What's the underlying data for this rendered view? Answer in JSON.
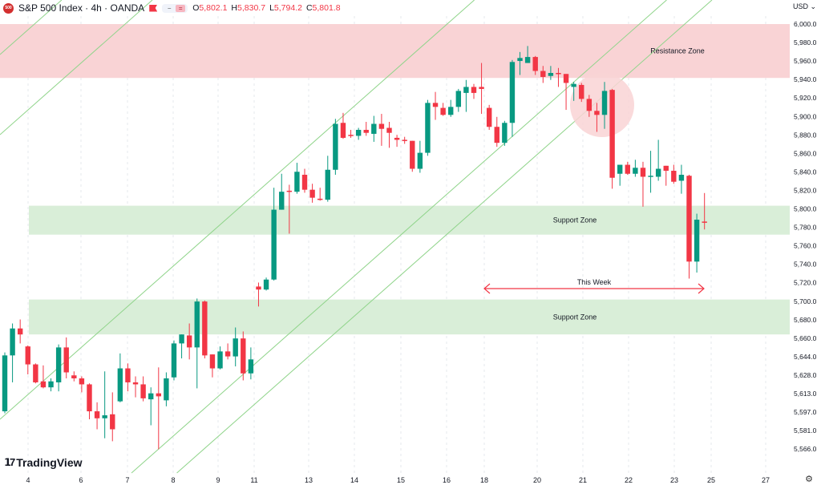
{
  "header": {
    "symbol_badge": "500",
    "title": "S&P 500 Index · 4h · OANDA",
    "ohlc": {
      "o_label": "O",
      "o": "5,802.1",
      "h_label": "H",
      "h": "5,830.7",
      "l_label": "L",
      "l": "5,794.2",
      "c_label": "C",
      "c": "5,801.8"
    },
    "currency": "USD ⌄"
  },
  "branding": {
    "logo_text": "TradingView"
  },
  "colors": {
    "up": "#089981",
    "down": "#f23645",
    "resistance": "#f9d3d5",
    "support": "#d9eed8",
    "channel": "#8fd48a",
    "arrow": "#f23645",
    "grid": "#e6e8ee"
  },
  "chart_data": {
    "type": "candlestick",
    "title": "S&P 500 Index · 4h · OANDA",
    "ylabel": "USD",
    "ylim": [
      5566,
      6000
    ],
    "y_ticks": [
      "6,000.0",
      "5,980.0",
      "5,960.0",
      "5,940.0",
      "5,920.0",
      "5,900.0",
      "5,880.0",
      "5,860.0",
      "5,840.0",
      "5,820.0",
      "5,800.0",
      "5,780.0",
      "5,760.0",
      "5,740.0",
      "5,720.0",
      "5,700.0",
      "5,680.0",
      "5,660.0",
      "5,644.0",
      "5,628.0",
      "5,613.0",
      "5,597.0",
      "5,581.0",
      "5,566.0"
    ],
    "x_ticks": [
      "4",
      "6",
      "7",
      "8",
      "9",
      "11",
      "13",
      "14",
      "15",
      "16",
      "18",
      "20",
      "21",
      "22",
      "23",
      "25",
      "27"
    ],
    "grid": true,
    "candles_ohlc": [
      [
        5612,
        5671,
        5610,
        5668
      ],
      [
        5668,
        5700,
        5641,
        5695
      ],
      [
        5695,
        5704,
        5680,
        5689
      ],
      [
        5677,
        5678,
        5649,
        5659
      ],
      [
        5659,
        5660,
        5640,
        5641
      ],
      [
        5642,
        5658,
        5635,
        5636
      ],
      [
        5636,
        5645,
        5632,
        5642
      ],
      [
        5641,
        5679,
        5632,
        5676
      ],
      [
        5676,
        5686,
        5645,
        5651
      ],
      [
        5648,
        5652,
        5642,
        5645
      ],
      [
        5645,
        5647,
        5631,
        5639
      ],
      [
        5639,
        5640,
        5604,
        5612
      ],
      [
        5612,
        5621,
        5594,
        5605
      ],
      [
        5605,
        5652,
        5585,
        5608
      ],
      [
        5609,
        5631,
        5582,
        5594
      ],
      [
        5622,
        5670,
        5621,
        5655
      ],
      [
        5655,
        5660,
        5632,
        5641
      ],
      [
        5641,
        5647,
        5626,
        5639
      ],
      [
        5639,
        5647,
        5622,
        5625
      ],
      [
        5624,
        5636,
        5598,
        5630
      ],
      [
        5630,
        5656,
        5574,
        5627
      ],
      [
        5623,
        5651,
        5617,
        5645
      ],
      [
        5646,
        5683,
        5643,
        5680
      ],
      [
        5680,
        5689,
        5665,
        5689
      ],
      [
        5688,
        5700,
        5664,
        5676
      ],
      [
        5676,
        5725,
        5635,
        5722
      ],
      [
        5722,
        5723,
        5665,
        5668
      ],
      [
        5669,
        5669,
        5646,
        5655
      ],
      [
        5655,
        5677,
        5654,
        5672
      ],
      [
        5672,
        5680,
        5664,
        5667
      ],
      [
        5667,
        5696,
        5657,
        5685
      ],
      [
        5685,
        5692,
        5643,
        5650
      ],
      [
        5650,
        5676,
        5644,
        5664
      ],
      [
        5737,
        5741,
        5717,
        5734
      ],
      [
        5734,
        5746,
        5733,
        5744
      ],
      [
        5744,
        5836,
        5743,
        5814
      ],
      [
        5814,
        5850,
        5814,
        5832
      ],
      [
        5833,
        5839,
        5790,
        5832
      ],
      [
        5832,
        5861,
        5830,
        5852
      ],
      [
        5849,
        5855,
        5831,
        5834
      ],
      [
        5834,
        5840,
        5821,
        5826
      ],
      [
        5825,
        5836,
        5823,
        5824
      ],
      [
        5824,
        5868,
        5822,
        5854
      ],
      [
        5854,
        5905,
        5849,
        5900
      ],
      [
        5901,
        5911,
        5885,
        5886
      ],
      [
        5889,
        5894,
        5886,
        5888
      ],
      [
        5888,
        5896,
        5884,
        5894
      ],
      [
        5894,
        5902,
        5888,
        5891
      ],
      [
        5890,
        5908,
        5882,
        5900
      ],
      [
        5900,
        5910,
        5878,
        5895
      ],
      [
        5896,
        5902,
        5876,
        5891
      ],
      [
        5886,
        5889,
        5877,
        5884
      ],
      [
        5884,
        5887,
        5880,
        5883
      ],
      [
        5883,
        5883,
        5852,
        5855
      ],
      [
        5855,
        5883,
        5851,
        5871
      ],
      [
        5871,
        5924,
        5868,
        5921
      ],
      [
        5921,
        5932,
        5904,
        5917
      ],
      [
        5916,
        5921,
        5908,
        5909
      ],
      [
        5909,
        5924,
        5907,
        5917
      ],
      [
        5917,
        5935,
        5912,
        5933
      ],
      [
        5931,
        5944,
        5912,
        5937
      ],
      [
        5937,
        5940,
        5925,
        5931
      ],
      [
        5937,
        5961,
        5910,
        5935
      ],
      [
        5916,
        5919,
        5894,
        5897
      ],
      [
        5897,
        5907,
        5877,
        5881
      ],
      [
        5881,
        5903,
        5878,
        5901
      ],
      [
        5901,
        5964,
        5887,
        5962
      ],
      [
        5963,
        5972,
        5949,
        5966
      ],
      [
        5961,
        5978,
        5961,
        5967
      ],
      [
        5967,
        5968,
        5949,
        5953
      ],
      [
        5953,
        5958,
        5941,
        5947
      ],
      [
        5948,
        5958,
        5944,
        5951
      ],
      [
        5951,
        5956,
        5937,
        5950
      ],
      [
        5950,
        5950,
        5914,
        5941
      ],
      [
        5937,
        5942,
        5923,
        5940
      ],
      [
        5939,
        5941,
        5922,
        5925
      ],
      [
        5925,
        5929,
        5907,
        5913
      ],
      [
        5913,
        5921,
        5892,
        5909
      ],
      [
        5909,
        5942,
        5895,
        5933
      ],
      [
        5934,
        5935,
        5835,
        5846
      ],
      [
        5850,
        5859,
        5838,
        5859
      ],
      [
        5859,
        5862,
        5849,
        5850
      ],
      [
        5850,
        5864,
        5847,
        5856
      ],
      [
        5856,
        5862,
        5817,
        5847
      ],
      [
        5847,
        5873,
        5831,
        5848
      ],
      [
        5847,
        5884,
        5843,
        5855
      ],
      [
        5858,
        5858,
        5838,
        5853
      ],
      [
        5853,
        5859,
        5840,
        5842
      ],
      [
        5843,
        5859,
        5830,
        5849
      ],
      [
        5848,
        5849,
        5745,
        5762
      ],
      [
        5762,
        5810,
        5751,
        5804
      ],
      [
        5802.1,
        5830.7,
        5794.2,
        5801.8
      ]
    ],
    "zones": [
      {
        "name": "Resistance Zone",
        "label": "Resistance Zone",
        "from": 5946,
        "to": 6000,
        "kind": "resistance"
      },
      {
        "name": "Support Zone upper",
        "label": "Support Zone",
        "from": 5789,
        "to": 5818,
        "kind": "support"
      },
      {
        "name": "Support Zone lower",
        "label": "Support Zone",
        "from": 5689,
        "to": 5724,
        "kind": "support"
      }
    ],
    "annotations": {
      "this_week_label": "This Week"
    }
  }
}
